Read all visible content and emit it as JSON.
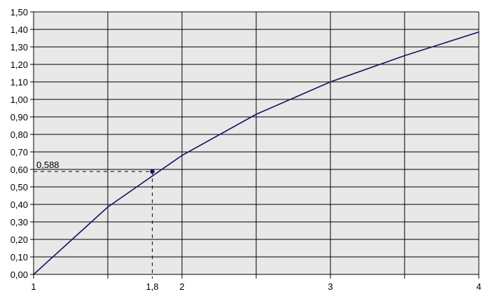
{
  "chart_data": {
    "type": "line",
    "title": "",
    "xlabel": "",
    "ylabel": "",
    "xlim": [
      1,
      4
    ],
    "ylim": [
      0,
      1.5
    ],
    "grid": true,
    "x_gridlines": [
      1,
      1.5,
      2,
      2.5,
      3,
      3.5,
      4
    ],
    "x_tick_labels": [
      {
        "value": 1,
        "label": "1"
      },
      {
        "value": 1.8,
        "label": "1,8"
      },
      {
        "value": 2,
        "label": "2"
      },
      {
        "value": 3,
        "label": "3"
      },
      {
        "value": 4,
        "label": "4"
      }
    ],
    "y_ticks": [
      0,
      0.1,
      0.2,
      0.3,
      0.4,
      0.5,
      0.6,
      0.7,
      0.8,
      0.9,
      1.0,
      1.1,
      1.2,
      1.3,
      1.4,
      1.5
    ],
    "y_tick_labels": [
      "0,00",
      "0,10",
      "0,20",
      "0,30",
      "0,40",
      "0,50",
      "0,60",
      "0,70",
      "0,80",
      "0,90",
      "1,00",
      "1,10",
      "1,20",
      "1,30",
      "1,40",
      "1,50"
    ],
    "series": [
      {
        "x": [
          1,
          1.5,
          2,
          2.5,
          3,
          3.5,
          4
        ],
        "y": [
          0,
          0.385,
          0.68,
          0.915,
          1.1,
          1.25,
          1.385
        ]
      }
    ],
    "annotation": {
      "x": 1.8,
      "y": 0.588,
      "y_label": "0,588"
    },
    "colors": {
      "plot_bg": "#e8e8e8",
      "line": "#1a1060",
      "grid": "#000000"
    }
  }
}
